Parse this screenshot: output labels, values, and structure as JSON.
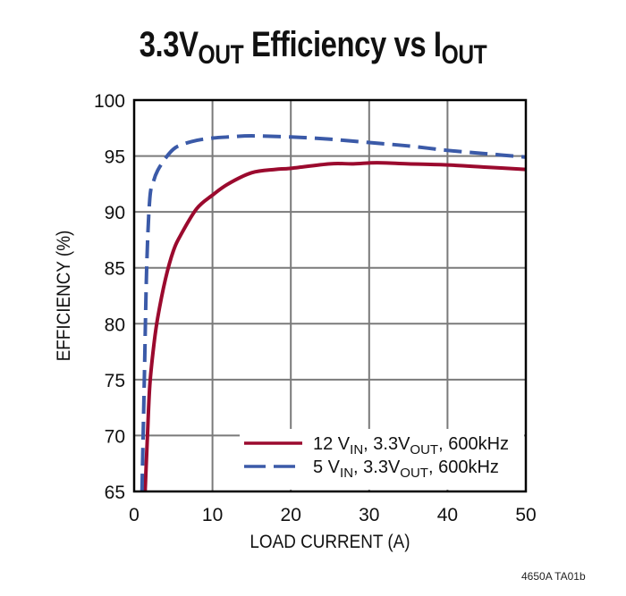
{
  "title": {
    "part1": "3.3V",
    "sub1": "OUT",
    "part2": " Efficiency vs I",
    "sub2": "OUT"
  },
  "footer": "4650A TA01b",
  "colors": {
    "series_12vin": "#9b0a2e",
    "series_5vin": "#3b5aa8",
    "grid": "#7a7a7a",
    "frame": "#000000"
  },
  "legend": [
    {
      "label_main": "12 V",
      "label_sub1": "IN",
      "label_mid": ", 3.3V",
      "label_sub2": "OUT",
      "label_end": ", 600kHz",
      "style": "solid"
    },
    {
      "label_main": "5 V",
      "label_sub1": "IN",
      "label_mid": ", 3.3V",
      "label_sub2": "OUT",
      "label_end": ", 600kHz",
      "style": "dashed"
    }
  ],
  "chart_data": {
    "type": "line",
    "title": "3.3VOUT Efficiency vs IOUT",
    "xlabel": "LOAD CURRENT (A)",
    "ylabel": "EFFICIENCY (%)",
    "xlim": [
      0,
      50
    ],
    "ylim": [
      65,
      100
    ],
    "xticks": [
      0,
      10,
      20,
      30,
      40,
      50
    ],
    "yticks": [
      65,
      70,
      75,
      80,
      85,
      90,
      95,
      100
    ],
    "grid": true,
    "legend_position": "lower right",
    "series": [
      {
        "name": "12 VIN, 3.3VOUT, 600kHz",
        "style": "solid",
        "color": "#9b0a2e",
        "x": [
          1.4,
          1.7,
          2.0,
          2.5,
          3.0,
          4.0,
          5.0,
          6.0,
          8.0,
          10.0,
          12.0,
          15.0,
          18.0,
          20.0,
          25.0,
          28.0,
          31.0,
          35.0,
          40.0,
          45.0,
          50.0
        ],
        "y": [
          65.0,
          70.0,
          74.5,
          78.0,
          80.5,
          84.0,
          86.5,
          88.0,
          90.3,
          91.5,
          92.5,
          93.5,
          93.8,
          93.9,
          94.3,
          94.3,
          94.4,
          94.3,
          94.2,
          94.0,
          93.8
        ]
      },
      {
        "name": "5 VIN, 3.3VOUT, 600kHz",
        "style": "dashed",
        "color": "#3b5aa8",
        "x": [
          1.0,
          1.3,
          1.6,
          2.0,
          2.5,
          3.0,
          4.0,
          5.0,
          6.0,
          8.0,
          10.0,
          12.0,
          15.0,
          20.0,
          25.0,
          30.0,
          35.0,
          40.0,
          45.0,
          50.0
        ],
        "y": [
          65.0,
          75.0,
          85.0,
          91.2,
          92.8,
          93.7,
          94.8,
          95.6,
          96.0,
          96.4,
          96.6,
          96.7,
          96.8,
          96.7,
          96.5,
          96.2,
          95.9,
          95.5,
          95.2,
          94.9
        ]
      }
    ]
  }
}
